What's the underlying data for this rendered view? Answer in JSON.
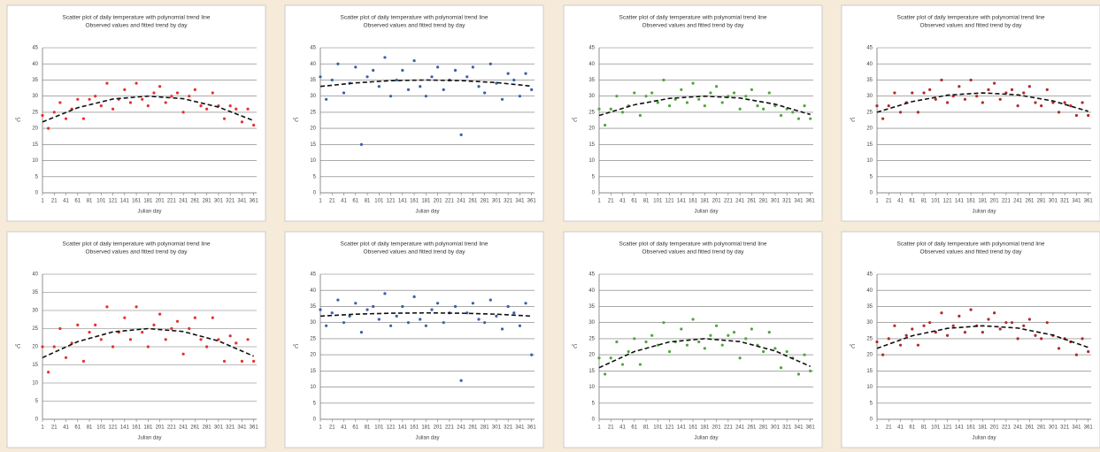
{
  "chart_data": [
    {
      "type": "scatter",
      "title": [
        "Scatter plot of daily temperature with polynomial trend line",
        "Observed values and fitted trend by day"
      ],
      "x_label": "Julian day",
      "y_label": "°C",
      "xlim": [
        1,
        366
      ],
      "xticks": [
        1,
        21,
        41,
        61,
        81,
        101,
        121,
        141,
        161,
        181,
        201,
        221,
        241,
        261,
        281,
        301,
        321,
        341,
        361
      ],
      "ylim": [
        0,
        45
      ],
      "yticks": [
        0,
        5,
        10,
        15,
        20,
        25,
        30,
        35,
        40,
        45
      ],
      "grid": true,
      "series": [
        {
          "color": "#e8302a",
          "x": [
            1,
            11,
            21,
            31,
            41,
            51,
            61,
            71,
            81,
            91,
            101,
            111,
            121,
            131,
            141,
            151,
            161,
            171,
            181,
            191,
            201,
            211,
            221,
            231,
            241,
            251,
            261,
            271,
            281,
            291,
            301,
            311,
            321,
            331,
            341,
            351,
            361
          ],
          "values": [
            24,
            20,
            25,
            28,
            23,
            26,
            29,
            23,
            29,
            30,
            27,
            34,
            26,
            29,
            32,
            28,
            34,
            29,
            27,
            31,
            33,
            28,
            30,
            31,
            25,
            30,
            32,
            27,
            26,
            31,
            27,
            23,
            27,
            26,
            22,
            26,
            21
          ]
        },
        {
          "color": "#111111",
          "dashed": true,
          "x": [
            1,
            61,
            121,
            181,
            241,
            301,
            361
          ],
          "values": [
            22,
            26.4,
            29.1,
            30,
            29.2,
            26.6,
            22.4
          ]
        }
      ]
    },
    {
      "type": "scatter",
      "title": [
        "Scatter plot of daily temperature with polynomial trend line",
        "Observed values and fitted trend by day"
      ],
      "x_label": "Julian day",
      "y_label": "°C",
      "xlim": [
        1,
        366
      ],
      "xticks": [
        1,
        21,
        41,
        61,
        81,
        101,
        121,
        141,
        161,
        181,
        201,
        221,
        241,
        261,
        281,
        301,
        321,
        341,
        361
      ],
      "ylim": [
        0,
        45
      ],
      "yticks": [
        0,
        5,
        10,
        15,
        20,
        25,
        30,
        35,
        40,
        45
      ],
      "grid": true,
      "series": [
        {
          "color": "#3a5fb0",
          "x": [
            1,
            11,
            21,
            31,
            41,
            51,
            61,
            71,
            81,
            91,
            101,
            111,
            121,
            131,
            141,
            151,
            161,
            171,
            181,
            191,
            201,
            211,
            221,
            231,
            241,
            251,
            261,
            271,
            281,
            291,
            301,
            311,
            321,
            331,
            341,
            351,
            361
          ],
          "values": [
            36,
            29,
            35,
            40,
            31,
            34,
            39,
            15,
            36,
            38,
            33,
            42,
            30,
            35,
            38,
            32,
            41,
            33,
            30,
            36,
            39,
            32,
            35,
            38,
            18,
            36,
            39,
            33,
            31,
            40,
            34,
            29,
            37,
            35,
            30,
            37,
            32
          ]
        },
        {
          "color": "#111111",
          "dashed": true,
          "x": [
            1,
            61,
            121,
            181,
            241,
            301,
            361
          ],
          "values": [
            33,
            34.1,
            34.8,
            35,
            34.8,
            34.2,
            33.1
          ]
        }
      ]
    },
    {
      "type": "scatter",
      "title": [
        "Scatter plot of daily temperature with polynomial trend line",
        "Observed values and fitted trend by day"
      ],
      "x_label": "Julian day",
      "y_label": "°C",
      "xlim": [
        1,
        366
      ],
      "xticks": [
        1,
        21,
        41,
        61,
        81,
        101,
        121,
        141,
        161,
        181,
        201,
        221,
        241,
        261,
        281,
        301,
        321,
        341,
        361
      ],
      "ylim": [
        0,
        45
      ],
      "yticks": [
        0,
        5,
        10,
        15,
        20,
        25,
        30,
        35,
        40,
        45
      ],
      "grid": true,
      "series": [
        {
          "color": "#4ea83a",
          "x": [
            1,
            11,
            21,
            31,
            41,
            51,
            61,
            71,
            81,
            91,
            101,
            111,
            121,
            131,
            141,
            151,
            161,
            171,
            181,
            191,
            201,
            211,
            221,
            231,
            241,
            251,
            261,
            271,
            281,
            291,
            301,
            311,
            321,
            331,
            341,
            351,
            361
          ],
          "values": [
            26,
            21,
            26,
            30,
            25,
            27,
            31,
            24,
            30,
            31,
            28,
            35,
            27,
            29,
            32,
            28,
            34,
            29,
            27,
            31,
            33,
            28,
            30,
            31,
            26,
            30,
            32,
            27,
            26,
            31,
            27,
            24,
            26,
            25,
            23,
            27,
            23
          ]
        },
        {
          "color": "#111111",
          "dashed": true,
          "x": [
            1,
            61,
            121,
            181,
            241,
            301,
            361
          ],
          "values": [
            24,
            27.3,
            29.3,
            30,
            29.4,
            27.5,
            24.3
          ]
        }
      ]
    },
    {
      "type": "scatter",
      "title": [
        "Scatter plot of daily temperature with polynomial trend line",
        "Observed values and fitted trend by day"
      ],
      "x_label": "Julian day",
      "y_label": "°C",
      "xlim": [
        1,
        366
      ],
      "xticks": [
        1,
        21,
        41,
        61,
        81,
        101,
        121,
        141,
        161,
        181,
        201,
        221,
        241,
        261,
        281,
        301,
        321,
        341,
        361
      ],
      "ylim": [
        0,
        45
      ],
      "yticks": [
        0,
        5,
        10,
        15,
        20,
        25,
        30,
        35,
        40,
        45
      ],
      "grid": true,
      "series": [
        {
          "color": "#b22a2a",
          "x": [
            1,
            11,
            21,
            31,
            41,
            51,
            61,
            71,
            81,
            91,
            101,
            111,
            121,
            131,
            141,
            151,
            161,
            171,
            181,
            191,
            201,
            211,
            221,
            231,
            241,
            251,
            261,
            271,
            281,
            291,
            301,
            311,
            321,
            331,
            341,
            351,
            361
          ],
          "values": [
            27,
            23,
            27,
            31,
            25,
            28,
            31,
            25,
            31,
            32,
            29,
            35,
            28,
            30,
            33,
            29,
            35,
            30,
            28,
            32,
            34,
            29,
            31,
            32,
            27,
            31,
            33,
            28,
            27,
            32,
            28,
            25,
            28,
            27,
            24,
            28,
            24
          ]
        },
        {
          "color": "#111111",
          "dashed": true,
          "x": [
            1,
            61,
            121,
            181,
            241,
            301,
            361
          ],
          "values": [
            25,
            28.3,
            30.3,
            31,
            30.4,
            28.5,
            25.3
          ]
        }
      ]
    },
    {
      "type": "scatter",
      "title": [
        "Scatter plot of daily temperature with polynomial trend line",
        "Observed values and fitted trend by day"
      ],
      "x_label": "Julian day",
      "y_label": "°C",
      "xlim": [
        1,
        366
      ],
      "xticks": [
        1,
        21,
        41,
        61,
        81,
        101,
        121,
        141,
        161,
        181,
        201,
        221,
        241,
        261,
        281,
        301,
        321,
        341,
        361
      ],
      "ylim": [
        0,
        40
      ],
      "yticks": [
        0,
        5,
        10,
        15,
        20,
        25,
        30,
        35,
        40
      ],
      "grid": true,
      "series": [
        {
          "color": "#e8302a",
          "x": [
            1,
            11,
            21,
            31,
            41,
            51,
            61,
            71,
            81,
            91,
            101,
            111,
            121,
            131,
            141,
            151,
            161,
            171,
            181,
            191,
            201,
            211,
            221,
            231,
            241,
            251,
            261,
            271,
            281,
            291,
            301,
            311,
            321,
            331,
            341,
            351,
            361
          ],
          "values": [
            20,
            13,
            20,
            25,
            17,
            21,
            26,
            16,
            24,
            26,
            22,
            31,
            20,
            24,
            28,
            22,
            31,
            24,
            20,
            26,
            29,
            22,
            25,
            27,
            18,
            25,
            28,
            22,
            20,
            28,
            22,
            16,
            23,
            21,
            16,
            22,
            16
          ]
        },
        {
          "color": "#111111",
          "dashed": true,
          "x": [
            1,
            61,
            121,
            181,
            241,
            301,
            361
          ],
          "values": [
            17,
            21.4,
            24.1,
            25,
            24.2,
            21.6,
            17.4
          ]
        }
      ]
    },
    {
      "type": "scatter",
      "title": [
        "Scatter plot of daily temperature with polynomial trend line",
        "Observed values and fitted trend by day"
      ],
      "x_label": "Julian day",
      "y_label": "°C",
      "xlim": [
        1,
        366
      ],
      "xticks": [
        1,
        21,
        41,
        61,
        81,
        101,
        121,
        141,
        161,
        181,
        201,
        221,
        241,
        261,
        281,
        301,
        321,
        341,
        361
      ],
      "ylim": [
        0,
        45
      ],
      "yticks": [
        0,
        5,
        10,
        15,
        20,
        25,
        30,
        35,
        40,
        45
      ],
      "grid": true,
      "series": [
        {
          "color": "#3a5fb0",
          "x": [
            1,
            11,
            21,
            31,
            41,
            51,
            61,
            71,
            81,
            91,
            101,
            111,
            121,
            131,
            141,
            151,
            161,
            171,
            181,
            191,
            201,
            211,
            221,
            231,
            241,
            251,
            261,
            271,
            281,
            291,
            301,
            311,
            321,
            331,
            341,
            351,
            361
          ],
          "values": [
            34,
            29,
            33,
            37,
            30,
            32,
            36,
            27,
            34,
            35,
            31,
            39,
            29,
            32,
            35,
            30,
            38,
            31,
            29,
            34,
            36,
            30,
            33,
            35,
            12,
            33,
            36,
            31,
            30,
            37,
            32,
            28,
            35,
            33,
            29,
            36,
            20
          ]
        },
        {
          "color": "#111111",
          "dashed": true,
          "x": [
            1,
            61,
            121,
            181,
            241,
            301,
            361
          ],
          "values": [
            32,
            32.6,
            32.9,
            33,
            32.9,
            32.6,
            32
          ]
        }
      ]
    },
    {
      "type": "scatter",
      "title": [
        "Scatter plot of daily temperature with polynomial trend line",
        "Observed values and fitted trend by day"
      ],
      "x_label": "Julian day",
      "y_label": "°C",
      "xlim": [
        1,
        366
      ],
      "xticks": [
        1,
        21,
        41,
        61,
        81,
        101,
        121,
        141,
        161,
        181,
        201,
        221,
        241,
        261,
        281,
        301,
        321,
        341,
        361
      ],
      "ylim": [
        0,
        45
      ],
      "yticks": [
        0,
        5,
        10,
        15,
        20,
        25,
        30,
        35,
        40,
        45
      ],
      "grid": true,
      "series": [
        {
          "color": "#4ea83a",
          "x": [
            1,
            11,
            21,
            31,
            41,
            51,
            61,
            71,
            81,
            91,
            101,
            111,
            121,
            131,
            141,
            151,
            161,
            171,
            181,
            191,
            201,
            211,
            221,
            231,
            241,
            251,
            261,
            271,
            281,
            291,
            301,
            311,
            321,
            331,
            341,
            351,
            361
          ],
          "values": [
            19,
            14,
            19,
            24,
            17,
            21,
            25,
            17,
            24,
            26,
            23,
            30,
            21,
            24,
            28,
            23,
            31,
            24,
            22,
            26,
            29,
            23,
            26,
            27,
            19,
            25,
            28,
            23,
            21,
            27,
            22,
            16,
            21,
            19,
            14,
            20,
            15
          ]
        },
        {
          "color": "#111111",
          "dashed": true,
          "x": [
            1,
            61,
            121,
            181,
            241,
            301,
            361
          ],
          "values": [
            16,
            21,
            24,
            25,
            24.1,
            21.2,
            16.4
          ]
        }
      ]
    },
    {
      "type": "scatter",
      "title": [
        "Scatter plot of daily temperature with polynomial trend line",
        "Observed values and fitted trend by day"
      ],
      "x_label": "Julian day",
      "y_label": "°C",
      "xlim": [
        1,
        366
      ],
      "xticks": [
        1,
        21,
        41,
        61,
        81,
        101,
        121,
        141,
        161,
        181,
        201,
        221,
        241,
        261,
        281,
        301,
        321,
        341,
        361
      ],
      "ylim": [
        0,
        45
      ],
      "yticks": [
        0,
        5,
        10,
        15,
        20,
        25,
        30,
        35,
        40,
        45
      ],
      "grid": true,
      "series": [
        {
          "color": "#b22a2a",
          "x": [
            1,
            11,
            21,
            31,
            41,
            51,
            61,
            71,
            81,
            91,
            101,
            111,
            121,
            131,
            141,
            151,
            161,
            171,
            181,
            191,
            201,
            211,
            221,
            231,
            241,
            251,
            261,
            271,
            281,
            291,
            301,
            311,
            321,
            331,
            341,
            351,
            361
          ],
          "values": [
            24,
            20,
            25,
            29,
            23,
            26,
            28,
            23,
            29,
            30,
            27,
            33,
            26,
            29,
            32,
            27,
            34,
            29,
            27,
            31,
            33,
            28,
            30,
            30,
            25,
            29,
            31,
            26,
            25,
            30,
            26,
            22,
            25,
            24,
            20,
            25,
            21
          ]
        },
        {
          "color": "#111111",
          "dashed": true,
          "x": [
            1,
            61,
            121,
            181,
            241,
            301,
            361
          ],
          "values": [
            22,
            25.9,
            28.2,
            29,
            28.3,
            26.1,
            22.3
          ]
        }
      ]
    }
  ]
}
